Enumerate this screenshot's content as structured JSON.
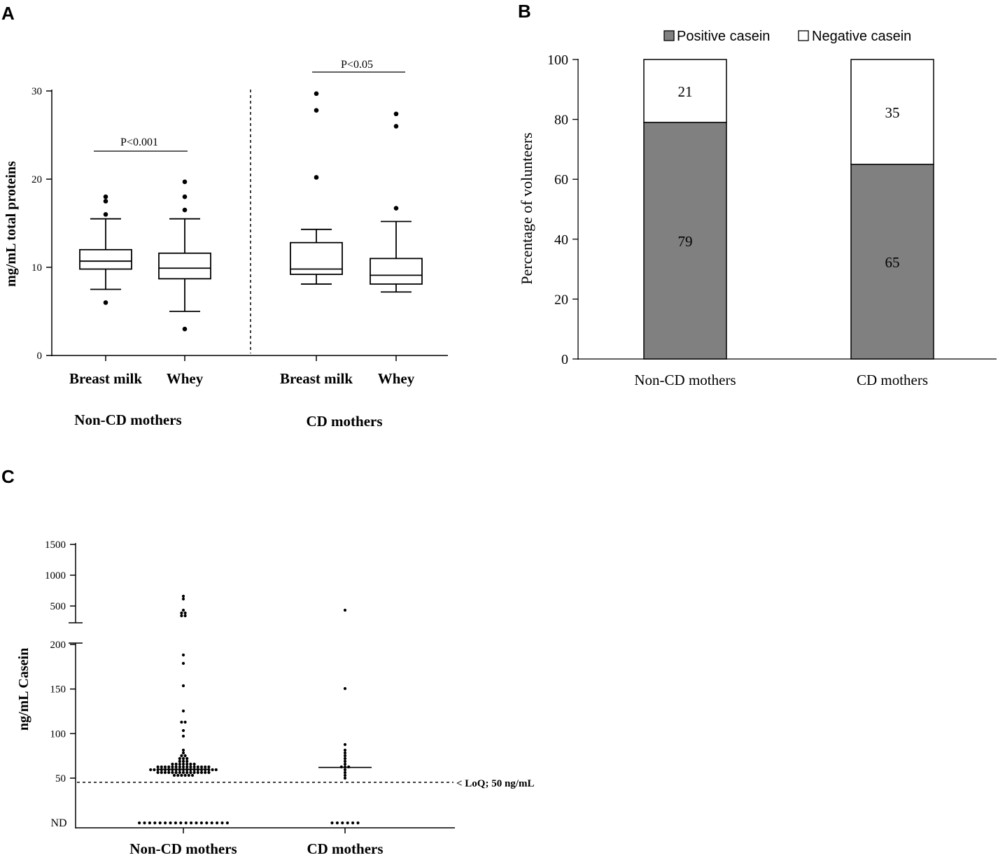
{
  "panels": {
    "a": {
      "letter": "A"
    },
    "b": {
      "letter": "B"
    },
    "c": {
      "letter": "C"
    }
  },
  "colors": {
    "ink": "#000000",
    "positive": "#808080",
    "negative": "#ffffff"
  },
  "chart_data": [
    {
      "panel": "A",
      "type": "box",
      "ylabel": "mg/mL total proteins",
      "ylim": [
        0,
        30
      ],
      "yticks": [
        0,
        10,
        20,
        30
      ],
      "groups": [
        {
          "label": "Non-CD mothers",
          "comparison": "P<0.001",
          "boxes": [
            {
              "label": "Breast milk",
              "whisker_low": 7.5,
              "q1": 9.8,
              "median": 10.7,
              "q3": 12.0,
              "whisker_high": 15.5,
              "outliers": [
                6.0,
                16.0,
                17.5,
                18.0
              ]
            },
            {
              "label": "Whey",
              "whisker_low": 5.0,
              "q1": 8.7,
              "median": 9.9,
              "q3": 11.6,
              "whisker_high": 15.5,
              "outliers": [
                3.0,
                16.5,
                18.0,
                19.7
              ]
            }
          ]
        },
        {
          "label": "CD mothers",
          "comparison": "P<0.05",
          "boxes": [
            {
              "label": "Breast milk",
              "whisker_low": 8.1,
              "q1": 9.2,
              "median": 9.8,
              "q3": 12.8,
              "whisker_high": 14.3,
              "outliers": [
                20.2,
                27.8,
                29.7
              ]
            },
            {
              "label": "Whey",
              "whisker_low": 7.2,
              "q1": 8.1,
              "median": 9.1,
              "q3": 11.0,
              "whisker_high": 15.2,
              "outliers": [
                16.7,
                26.0,
                27.4
              ]
            }
          ]
        }
      ]
    },
    {
      "panel": "B",
      "type": "bar",
      "stacked": true,
      "ylabel": "Percentage of volunteers",
      "ylim": [
        0,
        100
      ],
      "yticks": [
        0,
        20,
        40,
        60,
        80,
        100
      ],
      "categories": [
        "Non-CD mothers",
        "CD mothers"
      ],
      "series": [
        {
          "name": "Positive casein",
          "values": [
            79,
            65
          ]
        },
        {
          "name": "Negative casein",
          "values": [
            21,
            35
          ]
        }
      ],
      "legend": "top-right"
    },
    {
      "panel": "C",
      "type": "scatter",
      "ylabel": "ng/mL Casein",
      "yticks_lower": [
        "50",
        "100",
        "150",
        "200"
      ],
      "yticks_upper": [
        "500",
        "1000",
        "1500"
      ],
      "nd_label": "ND",
      "loq_label": "< LoQ; 50 ng/mL",
      "loq_value": 45,
      "categories": [
        "Non-CD mothers",
        "CD mothers"
      ],
      "median": [
        60,
        62
      ],
      "series": [
        {
          "name": "Non-CD mothers",
          "nd_count": 18,
          "values": [
            52,
            53,
            53,
            54,
            54,
            54,
            55,
            55,
            55,
            55,
            56,
            56,
            56,
            56,
            56,
            57,
            57,
            57,
            57,
            57,
            57,
            58,
            58,
            58,
            58,
            58,
            58,
            58,
            59,
            59,
            59,
            59,
            59,
            59,
            60,
            60,
            60,
            60,
            60,
            60,
            61,
            61,
            61,
            61,
            61,
            62,
            62,
            62,
            62,
            63,
            63,
            63,
            64,
            64,
            64,
            65,
            65,
            65,
            66,
            66,
            67,
            67,
            68,
            69,
            70,
            71,
            72,
            73,
            74,
            76,
            78,
            80,
            96,
            104,
            112,
            114,
            124,
            155,
            178,
            189,
            340,
            360,
            380,
            400,
            420,
            620,
            680
          ]
        },
        {
          "name": "CD mothers",
          "nd_count": 6,
          "values": [
            50,
            54,
            57,
            60,
            62,
            63,
            64,
            67,
            69,
            72,
            75,
            77,
            82,
            87,
            150,
            420
          ]
        }
      ]
    }
  ]
}
